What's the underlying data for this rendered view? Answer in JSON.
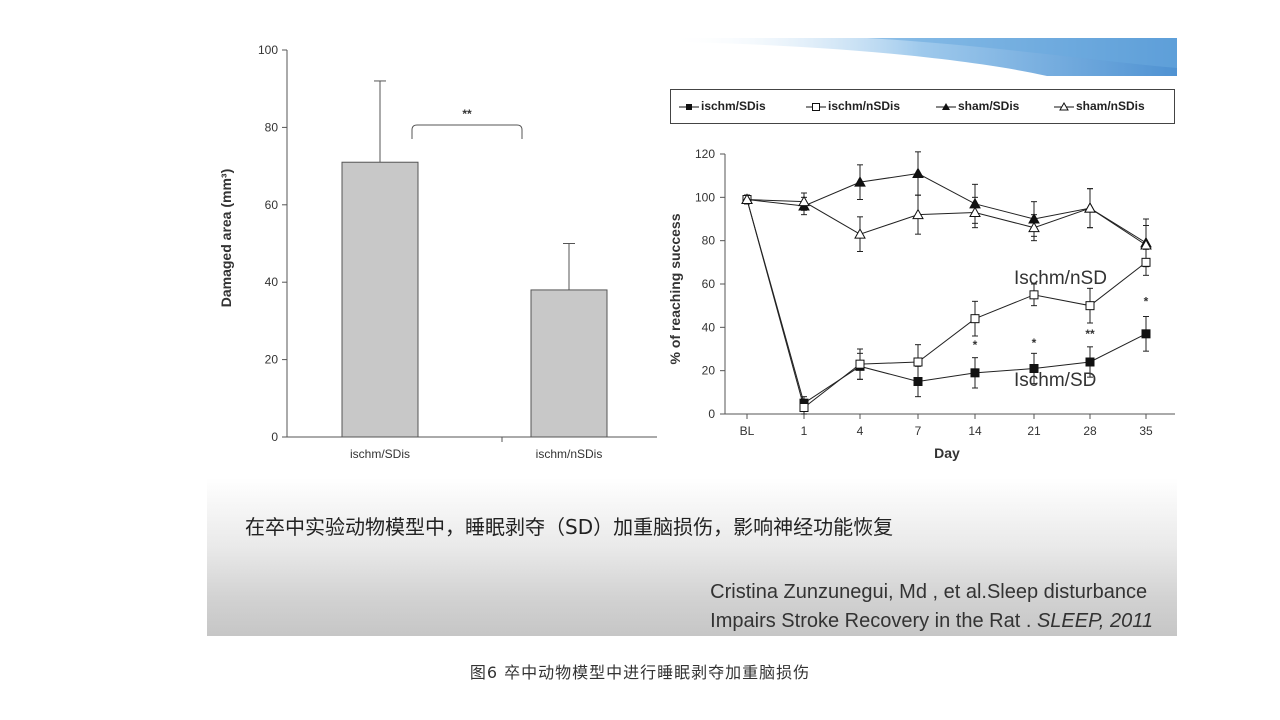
{
  "chart_data": [
    {
      "type": "bar",
      "ylabel": "Damaged area (mm³)",
      "ylim": [
        0,
        100
      ],
      "yticks": [
        0,
        20,
        40,
        60,
        80,
        100
      ],
      "categories": [
        "ischm/SDis",
        "ischm/nSDis"
      ],
      "values": [
        71,
        38
      ],
      "error_upper": [
        92,
        50
      ],
      "annotation": "**",
      "bar_color": "#c8c8c8"
    },
    {
      "type": "line",
      "xlabel": "Day",
      "ylabel": "% of reaching success",
      "ylim": [
        0,
        120
      ],
      "yticks": [
        0,
        20,
        40,
        60,
        80,
        100,
        120
      ],
      "categories": [
        "BL",
        "1",
        "4",
        "7",
        "14",
        "21",
        "28",
        "35"
      ],
      "series": [
        {
          "name": "ischm/SDis",
          "marker": "square-filled",
          "values": [
            99,
            5,
            22,
            15,
            19,
            21,
            24,
            37
          ],
          "errors": [
            2,
            3,
            6,
            7,
            7,
            7,
            7,
            8
          ]
        },
        {
          "name": "ischm/nSDis",
          "marker": "square-open",
          "values": [
            99,
            3,
            23,
            24,
            44,
            55,
            50,
            70
          ],
          "errors": [
            2,
            3,
            7,
            8,
            8,
            5,
            8,
            6
          ]
        },
        {
          "name": "sham/SDis",
          "marker": "triangle-filled",
          "values": [
            99,
            96,
            107,
            111,
            97,
            90,
            95,
            79
          ],
          "errors": [
            2,
            4,
            8,
            10,
            9,
            8,
            9,
            11
          ]
        },
        {
          "name": "sham/nSDis",
          "marker": "triangle-open",
          "values": [
            99,
            98,
            83,
            92,
            93,
            86,
            95,
            78
          ],
          "errors": [
            2,
            4,
            8,
            9,
            7,
            6,
            9,
            9
          ]
        }
      ],
      "significance": [
        {
          "category": "14",
          "label": "*",
          "y": 30
        },
        {
          "category": "21",
          "label": "*",
          "y": 31
        },
        {
          "category": "28",
          "label": "**",
          "y": 35
        },
        {
          "category": "35",
          "label": "*",
          "y": 50
        }
      ],
      "annotations": [
        {
          "text": "Ischm/nSD",
          "near_category": "21",
          "y": 60
        },
        {
          "text": "Ischm/SD",
          "near_category": "21",
          "y": 13
        }
      ]
    }
  ],
  "caption_cn": "在卒中实验动物模型中，睡眠剥夺（SD）加重脑损伤，影响神经功能恢复",
  "citation": {
    "line1": "Cristina Zunzunegui, Md  , et al.Sleep disturbance",
    "line2_plain": "Impairs Stroke Recovery in the Rat . ",
    "line2_italic": "SLEEP, 2011"
  },
  "figure_caption": "图6 卒中动物模型中进行睡眠剥夺加重脑损伤",
  "colors": {
    "banner": "#4a8fd0",
    "axis": "#555555",
    "bar": "#c8c8c8"
  }
}
